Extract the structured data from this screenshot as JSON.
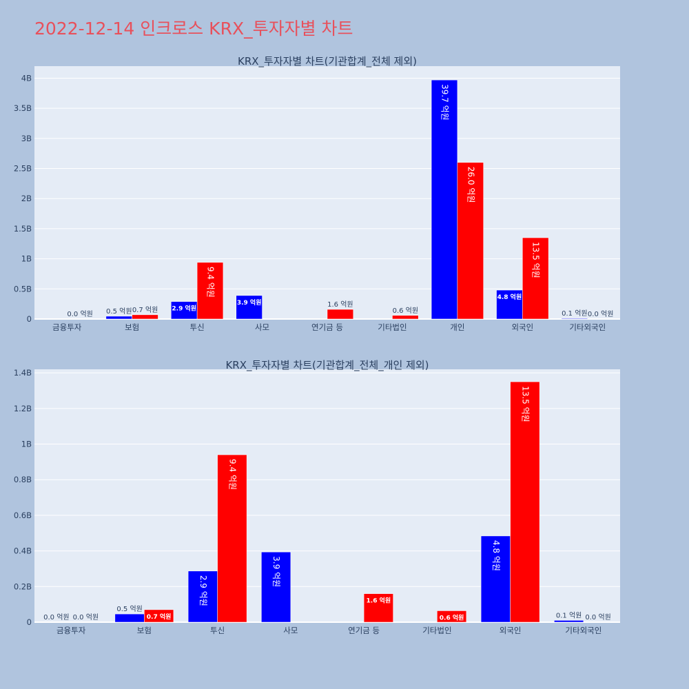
{
  "page_title": "2022-12-14 인크로스 KRX_투자자별 차트",
  "colors": {
    "series1": "#0000ff",
    "series2": "#ff0000",
    "plot_bg": "#e5ecf6",
    "page_bg": "#b0c4de",
    "title": "#e8505b"
  },
  "chart_data": [
    {
      "type": "bar",
      "title": "KRX_투자자별 차트(기관합계_전체 제외)",
      "categories": [
        "금융투자",
        "보험",
        "투신",
        "사모",
        "연기금 등",
        "기타법인",
        "개인",
        "외국인",
        "기타외국인"
      ],
      "series": [
        {
          "color": "#0000ff",
          "values": [
            0,
            0.046,
            0.29,
            0.39,
            0,
            0,
            3.97,
            0.48,
            0.01
          ],
          "labels": [
            "",
            "0.5 억원",
            "2.9 억원",
            "3.9 억원",
            "",
            "",
            "39.7 억원",
            "4.8 억원",
            "0.1 억원"
          ]
        },
        {
          "color": "#ff0000",
          "values": [
            0,
            0.07,
            0.94,
            0,
            0.16,
            0.06,
            2.6,
            1.35,
            0
          ],
          "labels": [
            "0.0 억원",
            "0.7 억원",
            "9.4 억원",
            "",
            "1.6 억원",
            "0.6 억원",
            "26.0 억원",
            "13.5 억원",
            "0.0 억원"
          ]
        }
      ],
      "ylim": [
        0,
        4.2
      ],
      "yticks": [
        0,
        0.5,
        1,
        1.5,
        2,
        2.5,
        3,
        3.5,
        4
      ],
      "ytick_labels": [
        "0",
        "0.5B",
        "1B",
        "1.5B",
        "2B",
        "2.5B",
        "3B",
        "3.5B",
        "4B"
      ],
      "grid": true
    },
    {
      "type": "bar",
      "title": "KRX_투자자별 차트(기관합계_전체_개인 제외)",
      "categories": [
        "금융투자",
        "보험",
        "투신",
        "사모",
        "연기금 등",
        "기타법인",
        "외국인",
        "기타외국인"
      ],
      "series": [
        {
          "color": "#0000ff",
          "values": [
            0,
            0.046,
            0.287,
            0.394,
            0,
            0,
            0.484,
            0.01
          ],
          "labels": [
            "0.0 억원",
            "0.5 억원",
            "2.9 억원",
            "3.9 억원",
            "",
            "",
            "4.8 억원",
            "0.1 억원"
          ]
        },
        {
          "color": "#ff0000",
          "values": [
            0,
            0.07,
            0.94,
            0,
            0.16,
            0.064,
            1.35,
            0
          ],
          "labels": [
            "0.0 억원",
            "0.7 억원",
            "9.4 억원",
            "",
            "1.6 억원",
            "0.6 억원",
            "13.5 억원",
            "0.0 억원"
          ]
        }
      ],
      "ylim": [
        0,
        1.42
      ],
      "yticks": [
        0,
        0.2,
        0.4,
        0.6,
        0.8,
        1,
        1.2,
        1.4
      ],
      "ytick_labels": [
        "0",
        "0.2B",
        "0.4B",
        "0.6B",
        "0.8B",
        "1B",
        "1.2B",
        "1.4B"
      ],
      "grid": true
    }
  ]
}
